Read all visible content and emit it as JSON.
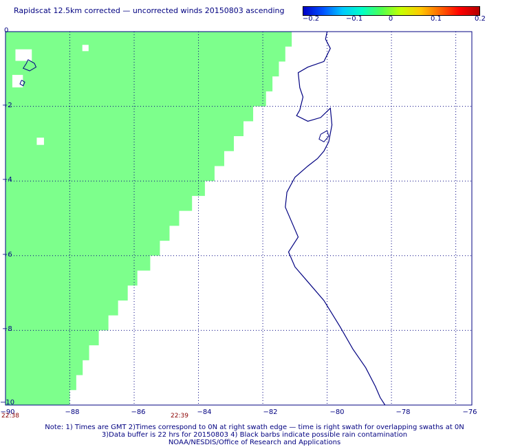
{
  "title": "Rapidscat 12.5km corrected — uncorrected winds 20150803 ascending",
  "colorbar": {
    "labels": [
      "−0.2",
      "−0.1",
      "0",
      "0.1",
      "0.2"
    ],
    "colors": [
      "#0000c8",
      "#00c8ff",
      "#50ff50",
      "#ffc800",
      "#b40000"
    ]
  },
  "axes": {
    "lat_ticks": [
      "0",
      "−2",
      "−4",
      "−6",
      "−8",
      "−10"
    ],
    "lon_ticks": [
      "−90",
      "−88",
      "−86",
      "−84",
      "−82",
      "−80",
      "−78",
      "−76"
    ],
    "lon_range": [
      -90,
      -75.5
    ],
    "lat_range": [
      -10,
      0
    ]
  },
  "times": [
    "22:38",
    "22:39"
  ],
  "swath": {
    "color": "#7dff8c",
    "value": "0",
    "east_edge": [
      [
        0.0,
        -81.1
      ],
      [
        -0.4,
        -81.3
      ],
      [
        -0.8,
        -81.5
      ],
      [
        -1.2,
        -81.7
      ],
      [
        -1.6,
        -81.9
      ],
      [
        -2.0,
        -82.3
      ],
      [
        -2.4,
        -82.6
      ],
      [
        -2.8,
        -82.9
      ],
      [
        -3.2,
        -83.2
      ],
      [
        -3.6,
        -83.5
      ],
      [
        -4.0,
        -83.8
      ],
      [
        -4.4,
        -84.2
      ],
      [
        -4.8,
        -84.6
      ],
      [
        -5.2,
        -84.9
      ],
      [
        -5.6,
        -85.2
      ],
      [
        -6.0,
        -85.5
      ],
      [
        -6.4,
        -85.9
      ],
      [
        -6.8,
        -86.2
      ],
      [
        -7.2,
        -86.5
      ],
      [
        -7.6,
        -86.8
      ],
      [
        -8.0,
        -87.1
      ],
      [
        -8.4,
        -87.4
      ],
      [
        -8.8,
        -87.6
      ],
      [
        -9.2,
        -87.8
      ],
      [
        -9.6,
        -88.0
      ],
      [
        -10.0,
        -88.0
      ]
    ]
  },
  "coastline_color": "#000080",
  "notes": [
    "Note: 1) Times are GMT 2)Times correspond to 0N at right swath edge — time is right swath for overlapping swaths at 0N",
    "3)Data buffer is 22 hrs for 20150803 4) Black barbs indicate possible rain contamination",
    "NOAA/NESDIS/Office of Research and Applications"
  ]
}
